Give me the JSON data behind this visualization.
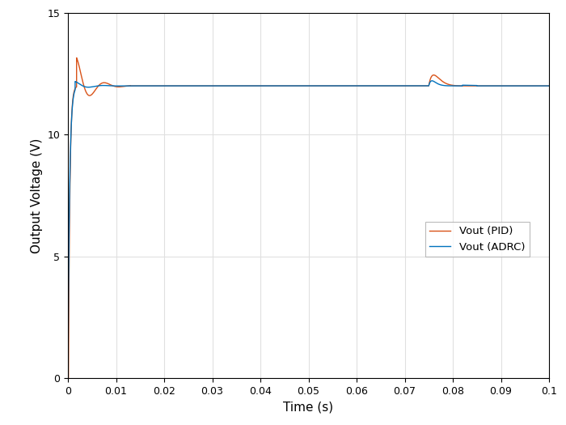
{
  "xlabel": "Time (s)",
  "ylabel": "Output Voltage (V)",
  "xlim": [
    0,
    0.1
  ],
  "ylim": [
    0,
    15
  ],
  "xticks": [
    0,
    0.01,
    0.02,
    0.03,
    0.04,
    0.05,
    0.06,
    0.07,
    0.08,
    0.09,
    0.1
  ],
  "xtick_labels": [
    "0",
    "0.01",
    "0.02",
    "0.03",
    "0.04",
    "0.05",
    "0.06",
    "0.07",
    "0.08",
    "0.09",
    "0.1"
  ],
  "yticks": [
    0,
    5,
    10,
    15
  ],
  "adrc_color": "#0072BD",
  "pid_color": "#D95319",
  "legend_labels": [
    "Vout (ADRC)",
    "Vout (PID)"
  ],
  "steady_state": 12.0,
  "background_color": "#ffffff",
  "grid_color": "#e0e0e0"
}
